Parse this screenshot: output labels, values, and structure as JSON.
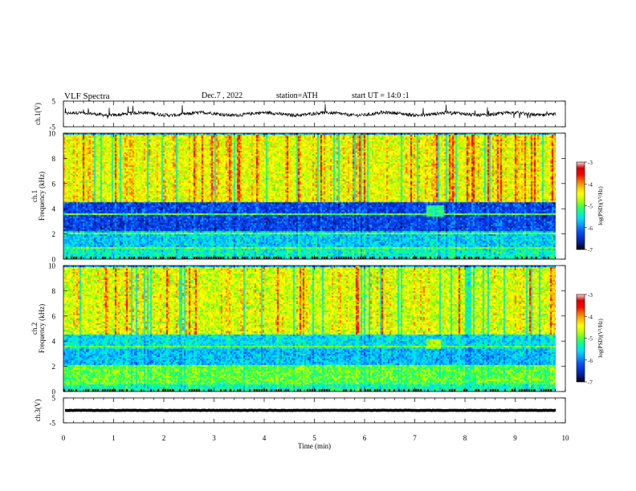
{
  "header": {
    "title": "VLF Spectra",
    "date": "Dec.7 , 2022",
    "station": "station=ATH",
    "start": "start UT = 14:0 :1"
  },
  "colors": {
    "palette": [
      "#000000",
      "#001a8c",
      "#0033d9",
      "#0b55ff",
      "#00a2ff",
      "#00ddff",
      "#00ff9a",
      "#4fff3a",
      "#bfff00",
      "#ffff00",
      "#ffc000",
      "#ff6a00",
      "#ff0000",
      "#d10000",
      "#ffd6d6",
      "#ffffff"
    ],
    "trace": "#000000",
    "axis": "#000000"
  },
  "chart_data": [
    {
      "type": "line",
      "panel": "ch1-waveform",
      "ylabel": "ch.1(V)",
      "ylim": [
        -5,
        5
      ],
      "yticks": [
        "5",
        "-5"
      ],
      "series": [
        {
          "values_description_range": [
            -1.8,
            1.2
          ]
        }
      ],
      "offset": 0.0,
      "amplitude": 1.3,
      "xlim": [
        0,
        10
      ]
    },
    {
      "type": "heatmap",
      "panel": "ch1-spectrogram",
      "ylabel": "ch.1\nFrequency (kHz)",
      "ylim": [
        0,
        10
      ],
      "yticks": [
        "0",
        "2",
        "4",
        "6",
        "8",
        "10"
      ],
      "xlim": [
        0,
        9.8
      ],
      "colorbar": {
        "label": "log(PSD)(V²/Hz)",
        "range": [
          -7,
          -3
        ],
        "ticks": [
          "-3",
          "-4",
          "-5",
          "-6",
          "-7"
        ]
      },
      "bands": [
        {
          "from": 0.0,
          "to": 0.9,
          "level": 5.5
        },
        {
          "from": 0.9,
          "to": 2.3,
          "level": 4.6
        },
        {
          "from": 2.3,
          "to": 4.6,
          "level": 2.4
        },
        {
          "from": 4.6,
          "to": 10.0,
          "level": 8.6
        }
      ],
      "features": [
        {
          "time": [
            7.2,
            7.55
          ],
          "freq": [
            3.5,
            4.3
          ],
          "level": 6.2
        }
      ]
    },
    {
      "type": "heatmap",
      "panel": "ch2-spectrogram",
      "ylabel": "ch.2\nFrequency (kHz)",
      "ylim": [
        0,
        10
      ],
      "yticks": [
        "0",
        "2",
        "4",
        "6",
        "8",
        "10"
      ],
      "xlim": [
        0,
        9.8
      ],
      "colorbar": {
        "label": "log(PSD)(V²/Hz)",
        "range": [
          -7,
          -3
        ],
        "ticks": [
          "-3",
          "-4",
          "-5",
          "-6",
          "-7"
        ]
      },
      "bands": [
        {
          "from": 0.0,
          "to": 0.6,
          "level": 5.8
        },
        {
          "from": 0.6,
          "to": 2.2,
          "level": 7.0
        },
        {
          "from": 2.2,
          "to": 3.4,
          "level": 4.4
        },
        {
          "from": 3.4,
          "to": 4.6,
          "level": 5.0
        },
        {
          "from": 4.6,
          "to": 10.0,
          "level": 8.4
        }
      ],
      "features": [
        {
          "time": [
            7.2,
            7.5
          ],
          "freq": [
            3.4,
            4.2
          ],
          "level": 8.0
        }
      ]
    },
    {
      "type": "line",
      "panel": "ch3-waveform",
      "ylabel": "ch.3(V)",
      "ylim": [
        -5,
        5
      ],
      "yticks": [
        "5",
        "-5"
      ],
      "offset": 0.0,
      "amplitude": 0.15,
      "xlim": [
        0,
        9.8
      ]
    }
  ],
  "xaxis": {
    "label": "Time (min)",
    "ticks": [
      "0",
      "1",
      "2",
      "3",
      "4",
      "5",
      "6",
      "7",
      "8",
      "9",
      "10"
    ],
    "xlim": [
      0,
      10
    ]
  }
}
